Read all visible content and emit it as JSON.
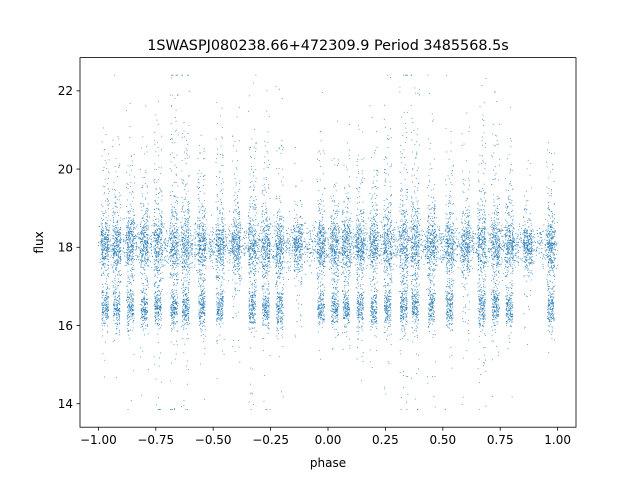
{
  "chart_data": {
    "type": "scatter",
    "title": "1SWASPJ080238.66+472309.9 Period 3485568.5s",
    "xlabel": "phase",
    "ylabel": "flux",
    "xlim": [
      -1.08,
      1.08
    ],
    "ylim": [
      13.4,
      22.85
    ],
    "xticks": [
      -1.0,
      -0.75,
      -0.5,
      -0.25,
      0.0,
      0.25,
      0.5,
      0.75,
      1.0
    ],
    "xtick_labels": [
      "−1.00",
      "−0.75",
      "−0.50",
      "−0.25",
      "0.00",
      "0.25",
      "0.50",
      "0.75",
      "1.00"
    ],
    "yticks": [
      14,
      16,
      18,
      20,
      22
    ],
    "ytick_labels": [
      "14",
      "16",
      "18",
      "20",
      "22"
    ],
    "grid": false,
    "marker_color": "#1f77b4",
    "main_band_center": 18.05,
    "low_band_center": 16.45,
    "flux_max": 22.4,
    "flux_min": 13.85,
    "phase_range": [
      -1.0,
      1.0
    ],
    "clusters": [
      {
        "phase": -0.97,
        "low_band": true,
        "spread": 0.55
      },
      {
        "phase": -0.92,
        "low_band": true,
        "spread": 0.55
      },
      {
        "phase": -0.86,
        "low_band": true,
        "spread": 0.6
      },
      {
        "phase": -0.8,
        "low_band": true,
        "spread": 0.6
      },
      {
        "phase": -0.74,
        "low_band": true,
        "spread": 0.8
      },
      {
        "phase": -0.67,
        "low_band": true,
        "spread": 1.0
      },
      {
        "phase": -0.62,
        "low_band": true,
        "spread": 0.95
      },
      {
        "phase": -0.55,
        "low_band": true,
        "spread": 0.7
      },
      {
        "phase": -0.47,
        "low_band": true,
        "spread": 0.65
      },
      {
        "phase": -0.4,
        "low_band": false,
        "spread": 0.6
      },
      {
        "phase": -0.33,
        "low_band": true,
        "spread": 0.9
      },
      {
        "phase": -0.27,
        "low_band": true,
        "spread": 0.75
      },
      {
        "phase": -0.21,
        "low_band": true,
        "spread": 0.6
      },
      {
        "phase": -0.13,
        "low_band": false,
        "spread": 0.35
      },
      {
        "phase": -0.03,
        "low_band": true,
        "spread": 0.5
      },
      {
        "phase": 0.03,
        "low_band": true,
        "spread": 0.55
      },
      {
        "phase": 0.08,
        "low_band": true,
        "spread": 0.55
      },
      {
        "phase": 0.14,
        "low_band": true,
        "spread": 0.6
      },
      {
        "phase": 0.2,
        "low_band": true,
        "spread": 0.6
      },
      {
        "phase": 0.26,
        "low_band": true,
        "spread": 0.8
      },
      {
        "phase": 0.33,
        "low_band": true,
        "spread": 1.0
      },
      {
        "phase": 0.38,
        "low_band": true,
        "spread": 0.95
      },
      {
        "phase": 0.45,
        "low_band": true,
        "spread": 0.7
      },
      {
        "phase": 0.53,
        "low_band": true,
        "spread": 0.65
      },
      {
        "phase": 0.6,
        "low_band": false,
        "spread": 0.6
      },
      {
        "phase": 0.67,
        "low_band": true,
        "spread": 0.9
      },
      {
        "phase": 0.73,
        "low_band": true,
        "spread": 0.75
      },
      {
        "phase": 0.79,
        "low_band": true,
        "spread": 0.6
      },
      {
        "phase": 0.87,
        "low_band": false,
        "spread": 0.35
      },
      {
        "phase": 0.97,
        "low_band": true,
        "spread": 0.5
      }
    ]
  }
}
